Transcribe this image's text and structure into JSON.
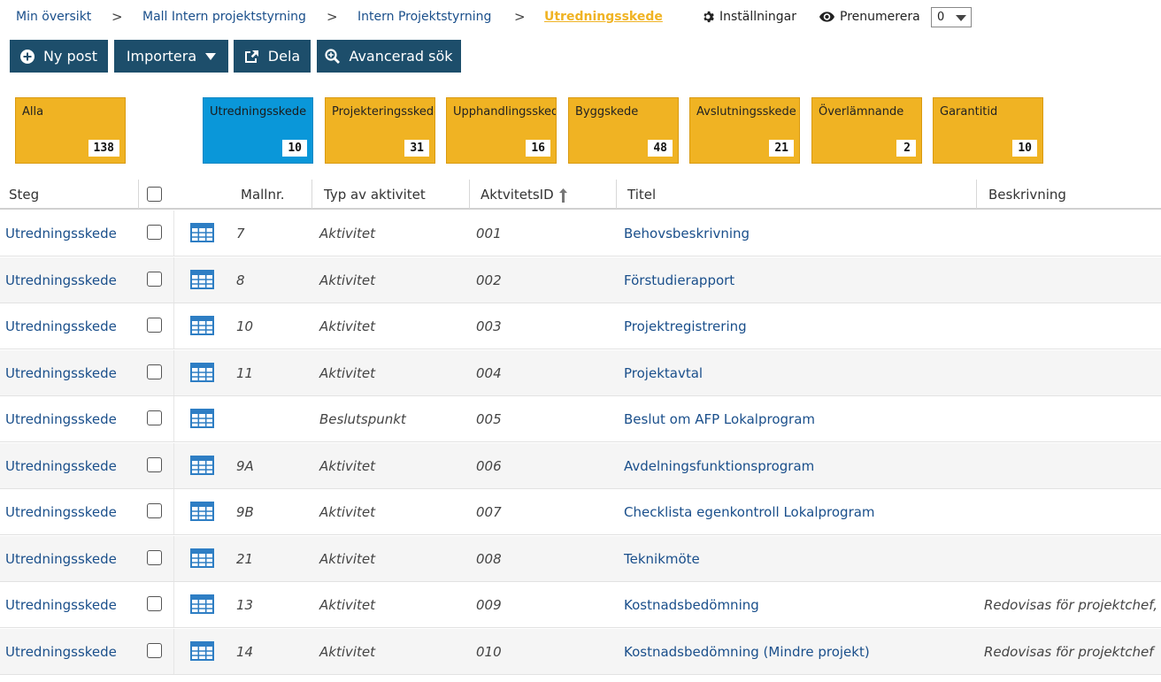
{
  "breadcrumb": {
    "items": [
      "Min översikt",
      "Mall Intern projektstyrning",
      "Intern Projektstyrning"
    ],
    "separator": ">",
    "current": "Utredningsskede"
  },
  "header": {
    "settings_label": "Inställningar",
    "subscribe_label": "Prenumerera",
    "subscribe_value": "0"
  },
  "toolbar": {
    "new_label": "Ny post",
    "import_label": "Importera",
    "share_label": "Dela",
    "advanced_search_label": "Avancerad sök"
  },
  "stages": [
    {
      "label": "Alla",
      "count": "138",
      "active": false
    },
    {
      "label": "Utredningsskede",
      "count": "10",
      "active": true
    },
    {
      "label": "Projekteringsskede",
      "count": "31",
      "active": false
    },
    {
      "label": "Upphandlingsskede",
      "count": "16",
      "active": false
    },
    {
      "label": "Byggskede",
      "count": "48",
      "active": false
    },
    {
      "label": "Avslutningsskede",
      "count": "21",
      "active": false
    },
    {
      "label": "Överlämnande",
      "count": "2",
      "active": false
    },
    {
      "label": "Garantitid",
      "count": "10",
      "active": false
    }
  ],
  "table": {
    "columns": {
      "steg": "Steg",
      "mallnr": "Mallnr.",
      "typ": "Typ av aktivitet",
      "id": "AktvitetsID",
      "titel": "Titel",
      "beskrivning": "Beskrivning"
    },
    "rows": [
      {
        "steg": "Utredningsskede",
        "mallnr": "7",
        "typ": "Aktivitet",
        "id": "001",
        "titel": "Behovsbeskrivning",
        "beskrivning": ""
      },
      {
        "steg": "Utredningsskede",
        "mallnr": "8",
        "typ": "Aktivitet",
        "id": "002",
        "titel": "Förstudierapport",
        "beskrivning": ""
      },
      {
        "steg": "Utredningsskede",
        "mallnr": "10",
        "typ": "Aktivitet",
        "id": "003",
        "titel": "Projektregistrering",
        "beskrivning": ""
      },
      {
        "steg": "Utredningsskede",
        "mallnr": "11",
        "typ": "Aktivitet",
        "id": "004",
        "titel": "Projektavtal",
        "beskrivning": ""
      },
      {
        "steg": "Utredningsskede",
        "mallnr": "",
        "typ": "Beslutspunkt",
        "id": "005",
        "titel": "Beslut om AFP Lokalprogram",
        "beskrivning": ""
      },
      {
        "steg": "Utredningsskede",
        "mallnr": "9A",
        "typ": "Aktivitet",
        "id": "006",
        "titel": "Avdelningsfunktionsprogram",
        "beskrivning": ""
      },
      {
        "steg": "Utredningsskede",
        "mallnr": "9B",
        "typ": "Aktivitet",
        "id": "007",
        "titel": "Checklista egenkontroll Lokalprogram",
        "beskrivning": ""
      },
      {
        "steg": "Utredningsskede",
        "mallnr": "21",
        "typ": "Aktivitet",
        "id": "008",
        "titel": "Teknikmöte",
        "beskrivning": ""
      },
      {
        "steg": "Utredningsskede",
        "mallnr": "13",
        "typ": "Aktivitet",
        "id": "009",
        "titel": "Kostnadsbedömning",
        "beskrivning": "Redovisas för projektchef,"
      },
      {
        "steg": "Utredningsskede",
        "mallnr": "14",
        "typ": "Aktivitet",
        "id": "010",
        "titel": "Kostnadsbedömning (Mindre projekt)",
        "beskrivning": "Redovisas för projektchef"
      }
    ]
  },
  "colors": {
    "accent_dark": "#1d4e6b",
    "tile_default": "#f0b323",
    "tile_active": "#0a97d9",
    "link": "#1a4f8b"
  },
  "icons": {
    "plus": "plus-circle-icon",
    "caret": "caret-down-icon",
    "share": "share-icon",
    "search": "search-plus-icon",
    "gear": "gear-icon",
    "eye": "eye-icon",
    "grid": "grid-icon"
  }
}
